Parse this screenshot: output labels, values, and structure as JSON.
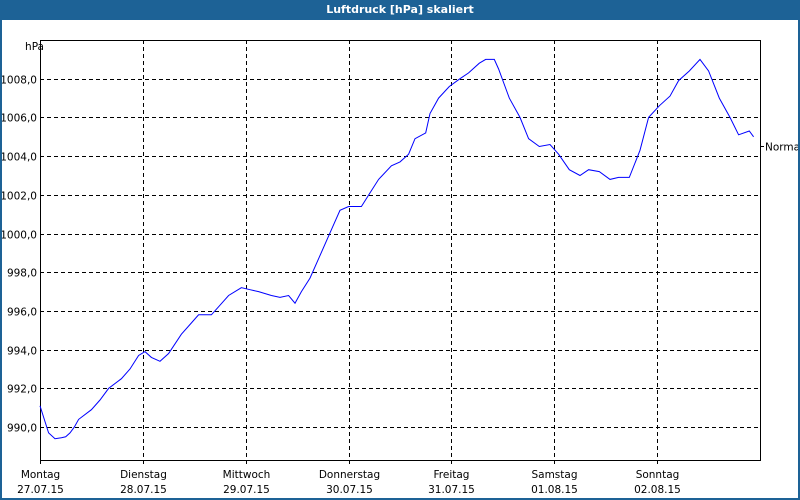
{
  "window": {
    "title": "Luftdruck [hPa] skaliert",
    "accent_color": "#1d6296"
  },
  "chart_data": {
    "type": "line",
    "title": "Luftdruck [hPa] skaliert",
    "ylabel": "hPa",
    "ylim": [
      988.3,
      1010.0
    ],
    "xlim": [
      "2015-07-27T00:00",
      "2015-08-03T00:00"
    ],
    "grid": true,
    "line_color": "#0000ff",
    "y_ticks": [
      990,
      992,
      994,
      996,
      998,
      1000,
      1002,
      1004,
      1006,
      1008
    ],
    "y_tick_labels": [
      "990,0",
      "992,0",
      "994,0",
      "996,0",
      "998,0",
      "1000,0",
      "1002,0",
      "1004,0",
      "1006,0",
      "1008,0"
    ],
    "x_ticks": [
      {
        "t": "2015-07-27T00:00",
        "day": "Montag",
        "date": "27.07.15"
      },
      {
        "t": "2015-07-28T00:00",
        "day": "Dienstag",
        "date": "28.07.15"
      },
      {
        "t": "2015-07-29T00:00",
        "day": "Mittwoch",
        "date": "29.07.15"
      },
      {
        "t": "2015-07-30T00:00",
        "day": "Donnerstag",
        "date": "30.07.15"
      },
      {
        "t": "2015-07-31T00:00",
        "day": "Freitag",
        "date": "31.07.15"
      },
      {
        "t": "2015-08-01T00:00",
        "day": "Samstag",
        "date": "01.08.15"
      },
      {
        "t": "2015-08-02T00:00",
        "day": "Sonntag",
        "date": "02.08.15"
      }
    ],
    "reference": {
      "label": "Normal",
      "value": 1004.5
    },
    "series": [
      {
        "x": [
          "2015-07-27T00:00",
          "2015-07-27T01:00",
          "2015-07-27T02:00",
          "2015-07-27T03:30",
          "2015-07-27T05:00",
          "2015-07-27T06:00",
          "2015-07-27T07:00",
          "2015-07-27T08:00",
          "2015-07-27T09:00",
          "2015-07-27T12:00",
          "2015-07-27T14:00",
          "2015-07-27T16:00",
          "2015-07-27T19:00",
          "2015-07-27T21:00",
          "2015-07-27T23:00",
          "2015-07-28T00:30",
          "2015-07-28T02:00",
          "2015-07-28T04:00",
          "2015-07-28T06:00",
          "2015-07-28T09:00",
          "2015-07-28T11:00",
          "2015-07-28T13:00",
          "2015-07-28T16:00",
          "2015-07-28T18:00",
          "2015-07-28T20:00",
          "2015-07-28T23:00",
          "2015-07-29T01:00",
          "2015-07-29T03:00",
          "2015-07-29T06:00",
          "2015-07-29T08:00",
          "2015-07-29T10:00",
          "2015-07-29T11:30",
          "2015-07-29T13:00",
          "2015-07-29T15:00",
          "2015-07-29T17:00",
          "2015-07-29T20:00",
          "2015-07-29T22:00",
          "2015-07-30T00:00",
          "2015-07-30T03:00",
          "2015-07-30T05:00",
          "2015-07-30T07:00",
          "2015-07-30T10:00",
          "2015-07-30T12:00",
          "2015-07-30T14:00",
          "2015-07-30T15:30",
          "2015-07-30T18:00",
          "2015-07-30T19:00",
          "2015-07-30T21:00",
          "2015-07-30T23:30",
          "2015-07-31T02:00",
          "2015-07-31T04:00",
          "2015-07-31T06:30",
          "2015-07-31T08:00",
          "2015-07-31T10:00",
          "2015-07-31T11:00",
          "2015-07-31T13:30",
          "2015-07-31T16:00",
          "2015-07-31T18:00",
          "2015-07-31T20:30",
          "2015-07-31T23:00",
          "2015-08-01T01:00",
          "2015-08-01T03:30",
          "2015-08-01T06:00",
          "2015-08-01T08:00",
          "2015-08-01T10:30",
          "2015-08-01T13:00",
          "2015-08-01T15:00",
          "2015-08-01T17:30",
          "2015-08-01T20:00",
          "2015-08-01T22:00",
          "2015-08-02T00:30",
          "2015-08-02T03:00",
          "2015-08-02T05:00",
          "2015-08-02T07:30",
          "2015-08-02T10:00",
          "2015-08-02T12:00",
          "2015-08-02T14:30",
          "2015-08-02T17:00",
          "2015-08-02T19:00",
          "2015-08-02T21:30",
          "2015-08-02T22:30"
        ],
        "y": [
          991.1,
          990.4,
          989.7,
          989.4,
          989.45,
          989.5,
          989.7,
          990.0,
          990.4,
          990.9,
          991.4,
          992.0,
          992.5,
          993.0,
          993.7,
          993.9,
          993.6,
          993.4,
          993.8,
          994.8,
          995.3,
          995.8,
          995.8,
          996.3,
          996.8,
          997.2,
          997.1,
          997.0,
          996.8,
          996.7,
          996.8,
          996.4,
          997.0,
          997.7,
          998.7,
          1000.2,
          1001.2,
          1001.4,
          1001.4,
          1002.1,
          1002.8,
          1003.5,
          1003.7,
          1004.1,
          1004.9,
          1005.2,
          1006.2,
          1007.0,
          1007.6,
          1008.0,
          1008.3,
          1008.8,
          1009.0,
          1009.0,
          1008.5,
          1007.0,
          1006.0,
          1004.9,
          1004.5,
          1004.6,
          1004.1,
          1003.3,
          1003.0,
          1003.3,
          1003.2,
          1002.8,
          1002.9,
          1002.9,
          1004.3,
          1006.0,
          1006.6,
          1007.1,
          1007.9,
          1008.4,
          1009.0,
          1008.4,
          1007.0,
          1006.0,
          1005.1,
          1005.3,
          1005.0
        ]
      }
    ]
  }
}
